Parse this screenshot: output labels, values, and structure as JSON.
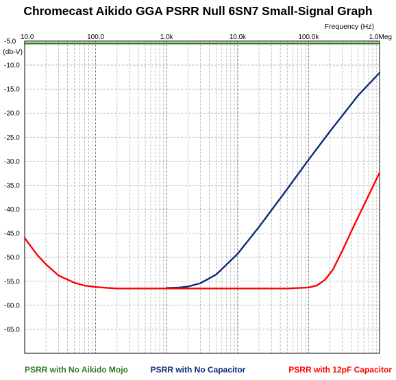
{
  "chart_data": {
    "type": "line",
    "title": "Chromecast Aikido GGA PSRR Null 6SN7 Small-Signal Graph",
    "xlabel": "Frequency  (Hz)",
    "ylabel": "(db-V)",
    "x_scale": "log",
    "xlim": [
      10,
      1000000
    ],
    "ylim": [
      -70,
      -5
    ],
    "grid": true,
    "x_ticks": [
      {
        "value": 10,
        "label": "10.0"
      },
      {
        "value": 100,
        "label": "100.0"
      },
      {
        "value": 1000,
        "label": "1.0k"
      },
      {
        "value": 10000,
        "label": "10.0k"
      },
      {
        "value": 100000,
        "label": "100.0k"
      },
      {
        "value": 1000000,
        "label": "1.0Meg"
      }
    ],
    "y_ticks": [
      {
        "value": -5,
        "label": "-5.0"
      },
      {
        "value": -10,
        "label": "-10.0"
      },
      {
        "value": -15,
        "label": "-15.0"
      },
      {
        "value": -20,
        "label": "-20.0"
      },
      {
        "value": -25,
        "label": "-25.0"
      },
      {
        "value": -30,
        "label": "-30.0"
      },
      {
        "value": -35,
        "label": "-35.0"
      },
      {
        "value": -40,
        "label": "-40.0"
      },
      {
        "value": -45,
        "label": "-45.0"
      },
      {
        "value": -50,
        "label": "-50.0"
      },
      {
        "value": -55,
        "label": "-55.0"
      },
      {
        "value": -60,
        "label": "-60.0"
      },
      {
        "value": -65,
        "label": "-65.0"
      }
    ],
    "series": [
      {
        "name": "PSRR with No Aikido Mojo",
        "color": "#2e7d1e",
        "legend_position": "bottom-left",
        "points": [
          [
            10,
            -5.5
          ],
          [
            1000000,
            -5.5
          ]
        ]
      },
      {
        "name": "PSRR with No Capacitor",
        "color": "#0a2a7a",
        "legend_position": "bottom-center",
        "points": [
          [
            1000,
            -56.4
          ],
          [
            1500,
            -56.3
          ],
          [
            2000,
            -56.1
          ],
          [
            3000,
            -55.4
          ],
          [
            5000,
            -53.6
          ],
          [
            10000,
            -49.3
          ],
          [
            20000,
            -43.7
          ],
          [
            50000,
            -35.8
          ],
          [
            100000,
            -29.7
          ],
          [
            200000,
            -23.8
          ],
          [
            500000,
            -16.3
          ],
          [
            1000000,
            -11.6
          ]
        ]
      },
      {
        "name": "PSRR with 12pF Capacitor",
        "color": "#ff0000",
        "legend_position": "bottom-right",
        "points": [
          [
            10,
            -46.0
          ],
          [
            15,
            -49.5
          ],
          [
            20,
            -51.5
          ],
          [
            30,
            -53.8
          ],
          [
            50,
            -55.3
          ],
          [
            70,
            -55.9
          ],
          [
            100,
            -56.2
          ],
          [
            150,
            -56.4
          ],
          [
            200,
            -56.5
          ],
          [
            1000,
            -56.5
          ],
          [
            10000,
            -56.5
          ],
          [
            50000,
            -56.5
          ],
          [
            100000,
            -56.3
          ],
          [
            130000,
            -55.9
          ],
          [
            170000,
            -54.7
          ],
          [
            220000,
            -52.6
          ],
          [
            300000,
            -48.6
          ],
          [
            400000,
            -44.6
          ],
          [
            600000,
            -39.2
          ],
          [
            1000000,
            -32.4
          ]
        ]
      }
    ]
  }
}
